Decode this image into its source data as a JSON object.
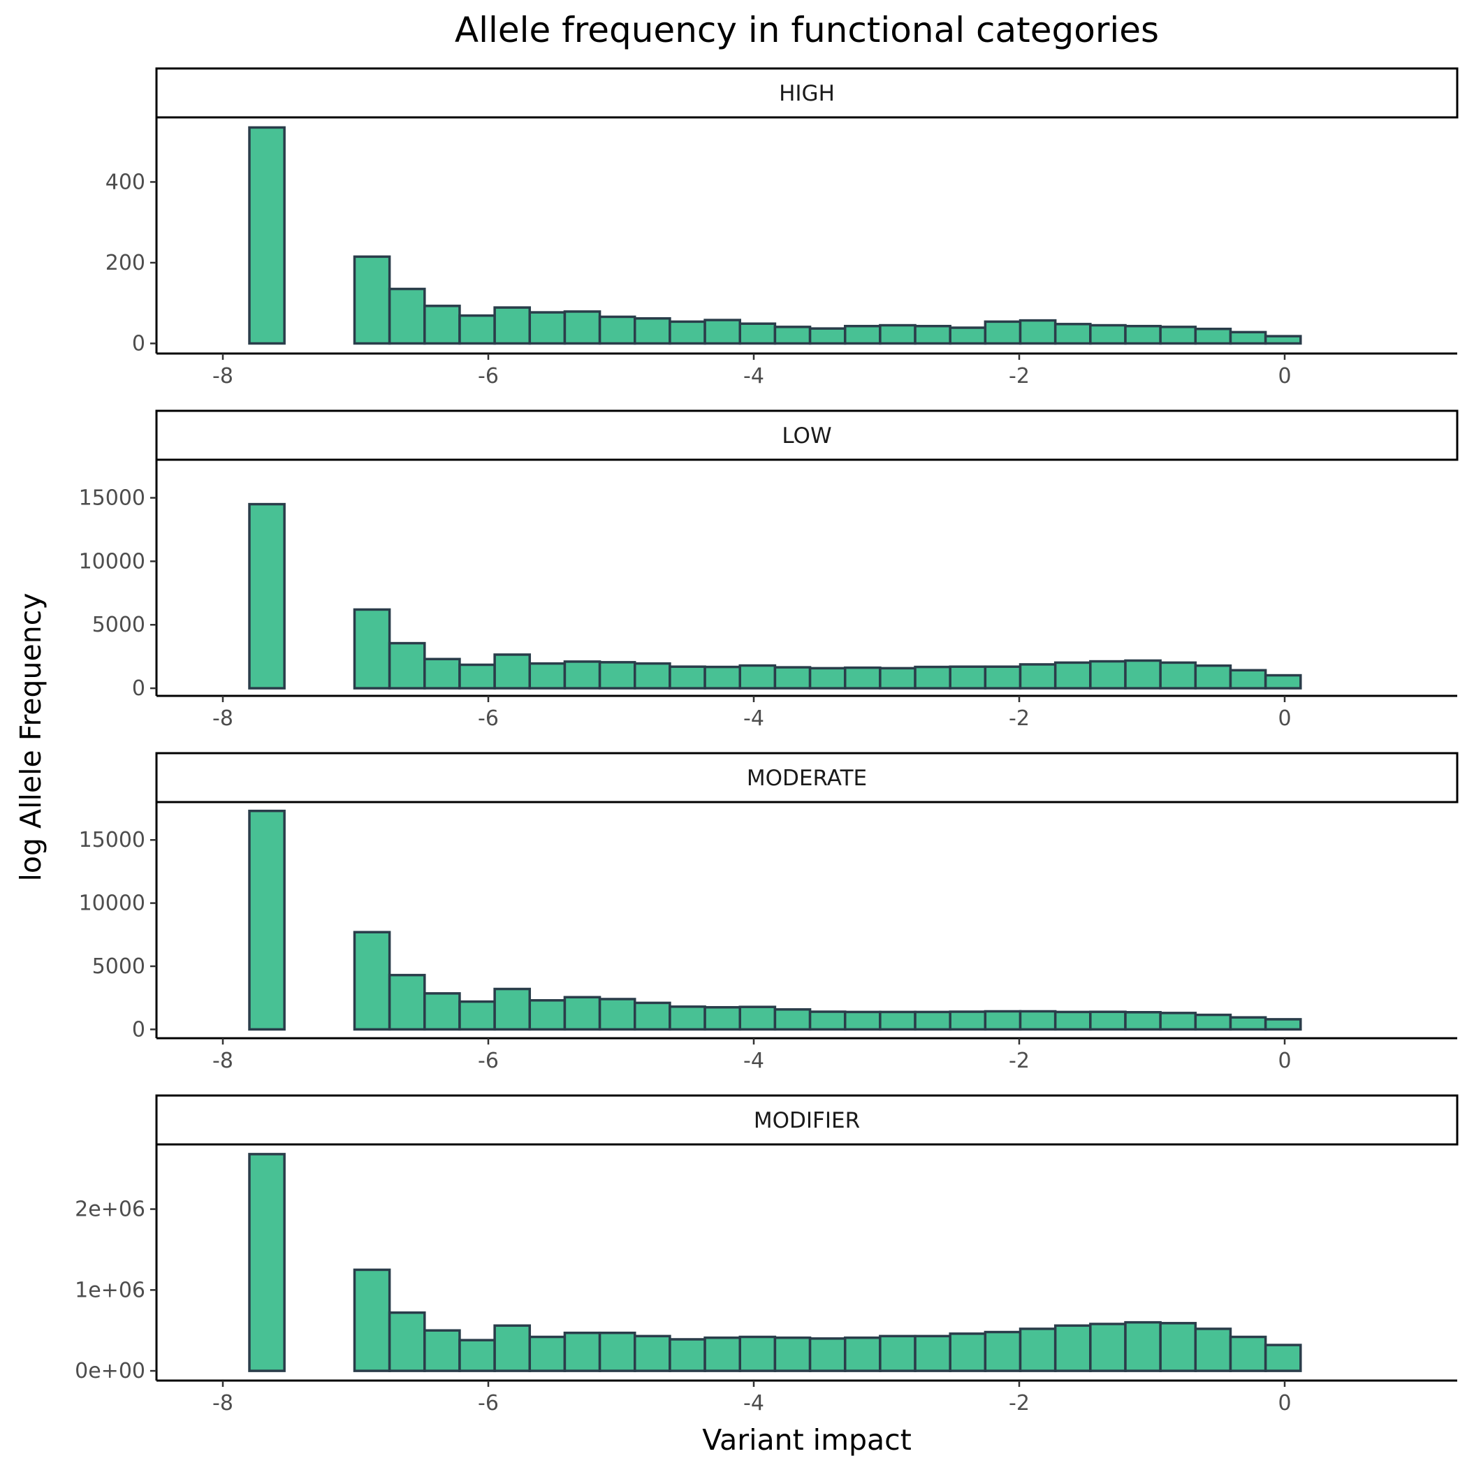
{
  "chart_data": {
    "type": "bar",
    "title": "Allele frequency in functional categories",
    "xlabel": "Variant impact",
    "ylabel": "log Allele Frequency",
    "bar_fill": "#48C194",
    "bar_outline": "#2A3D4A",
    "grid": false,
    "bin_start": -7.8,
    "bin_width": 0.264,
    "xlim": [
      -8.5,
      1.3
    ],
    "x_ticks": [
      -8,
      -6,
      -4,
      -2,
      0
    ],
    "x_tick_labels": [
      "-8",
      "-6",
      "-4",
      "-2",
      "0"
    ],
    "panels": [
      {
        "name": "HIGH",
        "ylim": [
          -25,
          560
        ],
        "y_ticks": [
          0,
          200,
          400
        ],
        "y_tick_labels": [
          "0",
          "200",
          "400"
        ],
        "values": [
          535,
          0,
          0,
          215,
          135,
          93,
          69,
          89,
          77,
          79,
          66,
          62,
          54,
          58,
          49,
          41,
          37,
          43,
          45,
          43,
          39,
          54,
          57,
          48,
          45,
          43,
          41,
          36,
          28,
          18
        ]
      },
      {
        "name": "LOW",
        "ylim": [
          -600,
          18000
        ],
        "y_ticks": [
          0,
          5000,
          10000,
          15000
        ],
        "y_tick_labels": [
          "0",
          "5000",
          "10000",
          "15000"
        ],
        "values": [
          14500,
          0,
          0,
          6200,
          3550,
          2300,
          1850,
          2650,
          1950,
          2100,
          2050,
          1950,
          1700,
          1680,
          1790,
          1650,
          1580,
          1620,
          1580,
          1680,
          1700,
          1700,
          1880,
          2020,
          2120,
          2180,
          2020,
          1780,
          1420,
          1020
        ]
      },
      {
        "name": "MODERATE",
        "ylim": [
          -700,
          18000
        ],
        "y_ticks": [
          0,
          5000,
          10000,
          15000
        ],
        "y_tick_labels": [
          "0",
          "5000",
          "10000",
          "15000"
        ],
        "values": [
          17300,
          0,
          0,
          7700,
          4300,
          2850,
          2200,
          3200,
          2300,
          2550,
          2400,
          2100,
          1800,
          1750,
          1780,
          1580,
          1400,
          1380,
          1380,
          1380,
          1400,
          1430,
          1430,
          1380,
          1390,
          1360,
          1300,
          1150,
          950,
          800
        ]
      },
      {
        "name": "MODIFIER",
        "ylim": [
          -120000,
          2800000
        ],
        "y_ticks": [
          0,
          1000000,
          2000000
        ],
        "y_tick_labels": [
          "0e+00",
          "1e+06",
          "2e+06"
        ],
        "values": [
          2680000,
          0,
          0,
          1250000,
          720000,
          500000,
          380000,
          560000,
          420000,
          470000,
          470000,
          430000,
          390000,
          410000,
          420000,
          410000,
          400000,
          410000,
          430000,
          430000,
          460000,
          480000,
          520000,
          560000,
          580000,
          600000,
          590000,
          520000,
          420000,
          320000
        ]
      }
    ]
  }
}
